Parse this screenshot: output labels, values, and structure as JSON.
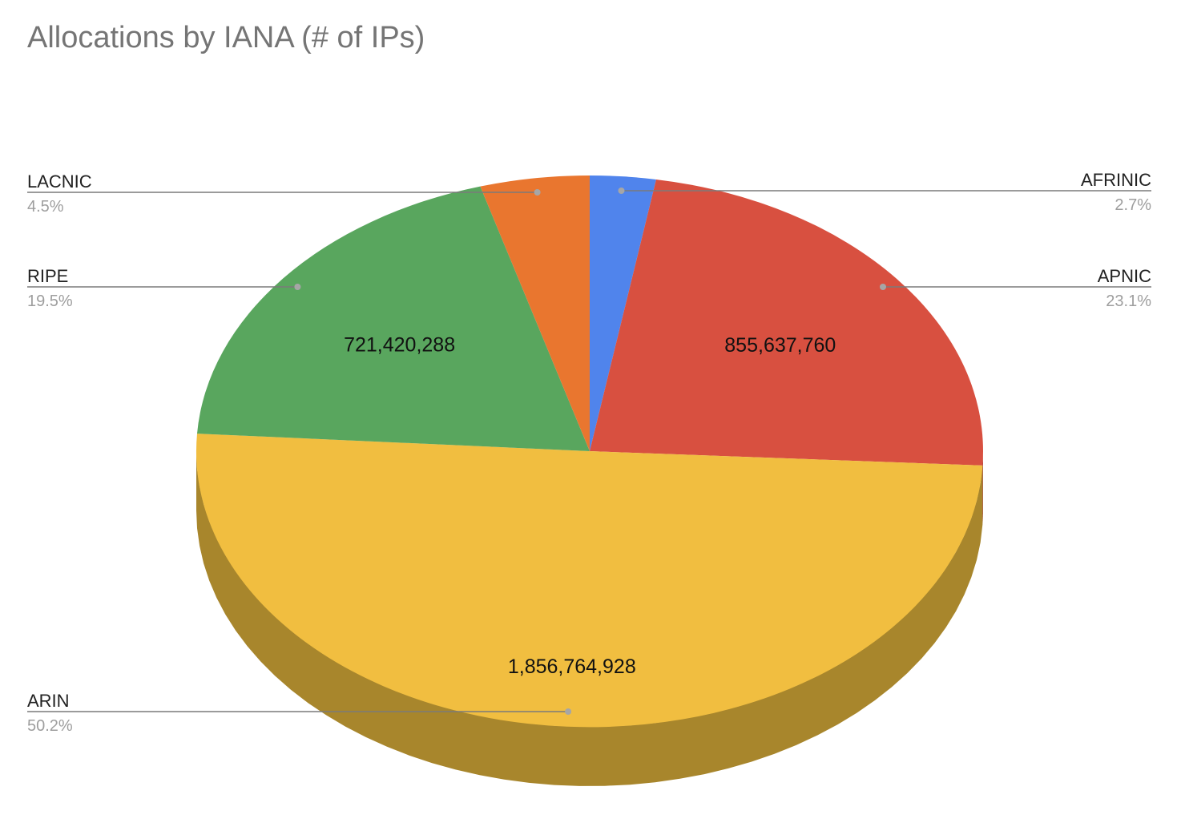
{
  "chart_data": {
    "type": "pie",
    "title": "Allocations by IANA (# of IPs)",
    "style": "3d",
    "slices": [
      {
        "name": "AFRINIC",
        "value": 100000000,
        "percent": "2.7%",
        "value_label": "",
        "color": "#5084ec",
        "side_color": "#3d63b0",
        "legend_side": "right"
      },
      {
        "name": "APNIC",
        "value": 855637760,
        "percent": "23.1%",
        "value_label": "855,637,760",
        "color": "#d85040",
        "side_color": "#a23c30",
        "legend_side": "right"
      },
      {
        "name": "ARIN",
        "value": 1856764928,
        "percent": "50.2%",
        "value_label": "1,856,764,928",
        "color": "#f1be40",
        "side_color": "#a8862c",
        "legend_side": "left"
      },
      {
        "name": "RIPE",
        "value": 721420288,
        "percent": "19.5%",
        "value_label": "721,420,288",
        "color": "#59a65e",
        "side_color": "#437c47",
        "legend_side": "left"
      },
      {
        "name": "LACNIC",
        "value": 166000000,
        "percent": "4.5%",
        "value_label": "",
        "color": "#e9762f",
        "side_color": "#af5923",
        "legend_side": "left"
      }
    ]
  }
}
